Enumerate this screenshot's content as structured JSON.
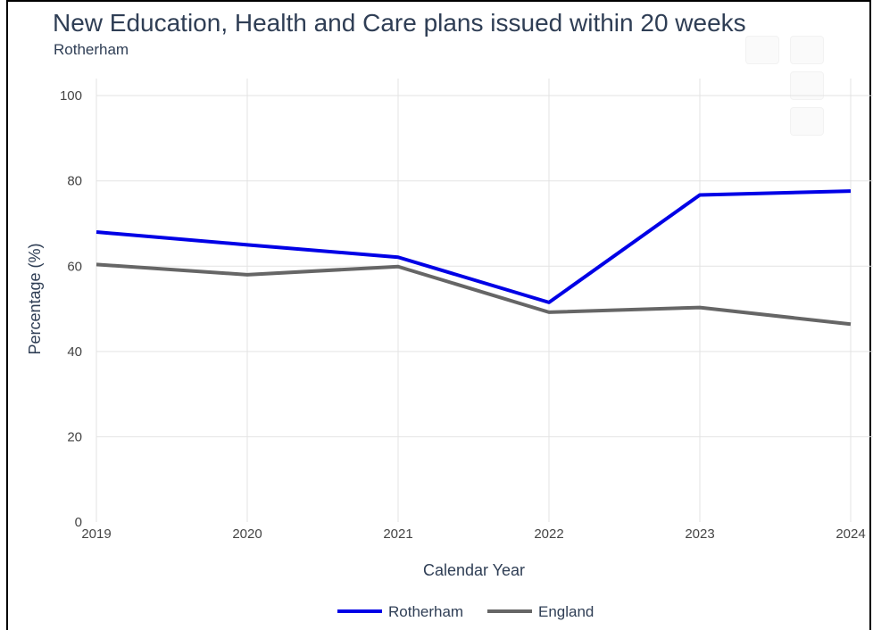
{
  "chart_data": {
    "type": "line",
    "title": "New Education, Health and Care plans issued within 20 weeks",
    "subtitle": "Rotherham",
    "xlabel": "Calendar Year",
    "ylabel": "Percentage (%)",
    "x": [
      2019,
      2020,
      2021,
      2022,
      2023,
      2024
    ],
    "x_tick_labels": [
      "2019",
      "2020",
      "2021",
      "2022",
      "2023",
      "2024"
    ],
    "y_ticks": [
      0,
      20,
      40,
      60,
      80,
      100
    ],
    "ylim": [
      0,
      104
    ],
    "grid": true,
    "legend_position": "bottom",
    "series": [
      {
        "name": "Rotherham",
        "color": "#0000e6",
        "values": [
          68.0,
          65.0,
          62.1,
          51.5,
          76.7,
          77.6
        ]
      },
      {
        "name": "England",
        "color": "#666666",
        "values": [
          60.4,
          58.0,
          59.9,
          49.2,
          50.3,
          46.4
        ]
      }
    ]
  },
  "colors": {
    "title": "#2f3e55",
    "grid": "#e3e3e3",
    "axis_text": "#444444"
  }
}
